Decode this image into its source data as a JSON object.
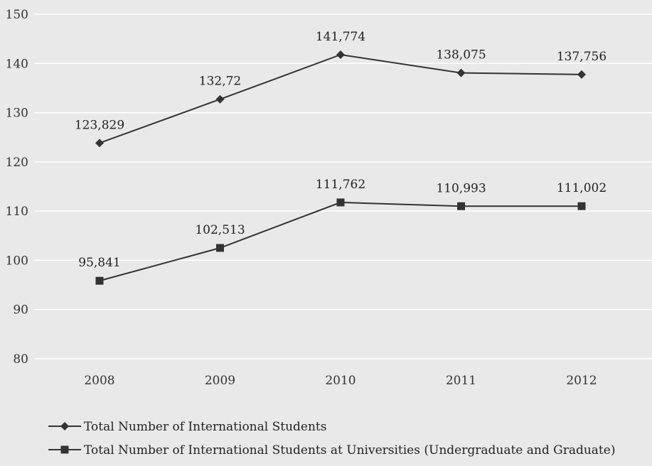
{
  "chart_data": {
    "type": "line",
    "title": "",
    "xlabel": "",
    "ylabel": "",
    "categories": [
      "2008",
      "2009",
      "2010",
      "2011",
      "2012"
    ],
    "ylim": [
      80,
      150
    ],
    "yticks": [
      80,
      90,
      100,
      110,
      120,
      130,
      140,
      150
    ],
    "grid": true,
    "legend_position": "bottom",
    "series": [
      {
        "name": "Total Number of International Students",
        "marker": "diamond",
        "values": [
          123.829,
          132.72,
          141.774,
          138.075,
          137.756
        ],
        "labels": [
          "123,829",
          "132,72",
          "141,774",
          "138,075",
          "137,756"
        ]
      },
      {
        "name": "Total Number of International Students at Universities (Undergraduate and Graduate)",
        "marker": "square",
        "values": [
          95.841,
          102.513,
          111.762,
          110.993,
          111.002
        ],
        "labels": [
          "95,841",
          "102,513",
          "111,762",
          "110,993",
          "111,002"
        ]
      }
    ],
    "colors": {
      "line": "#333333",
      "grid": "#ffffff",
      "background": "#e9e9e9"
    }
  }
}
